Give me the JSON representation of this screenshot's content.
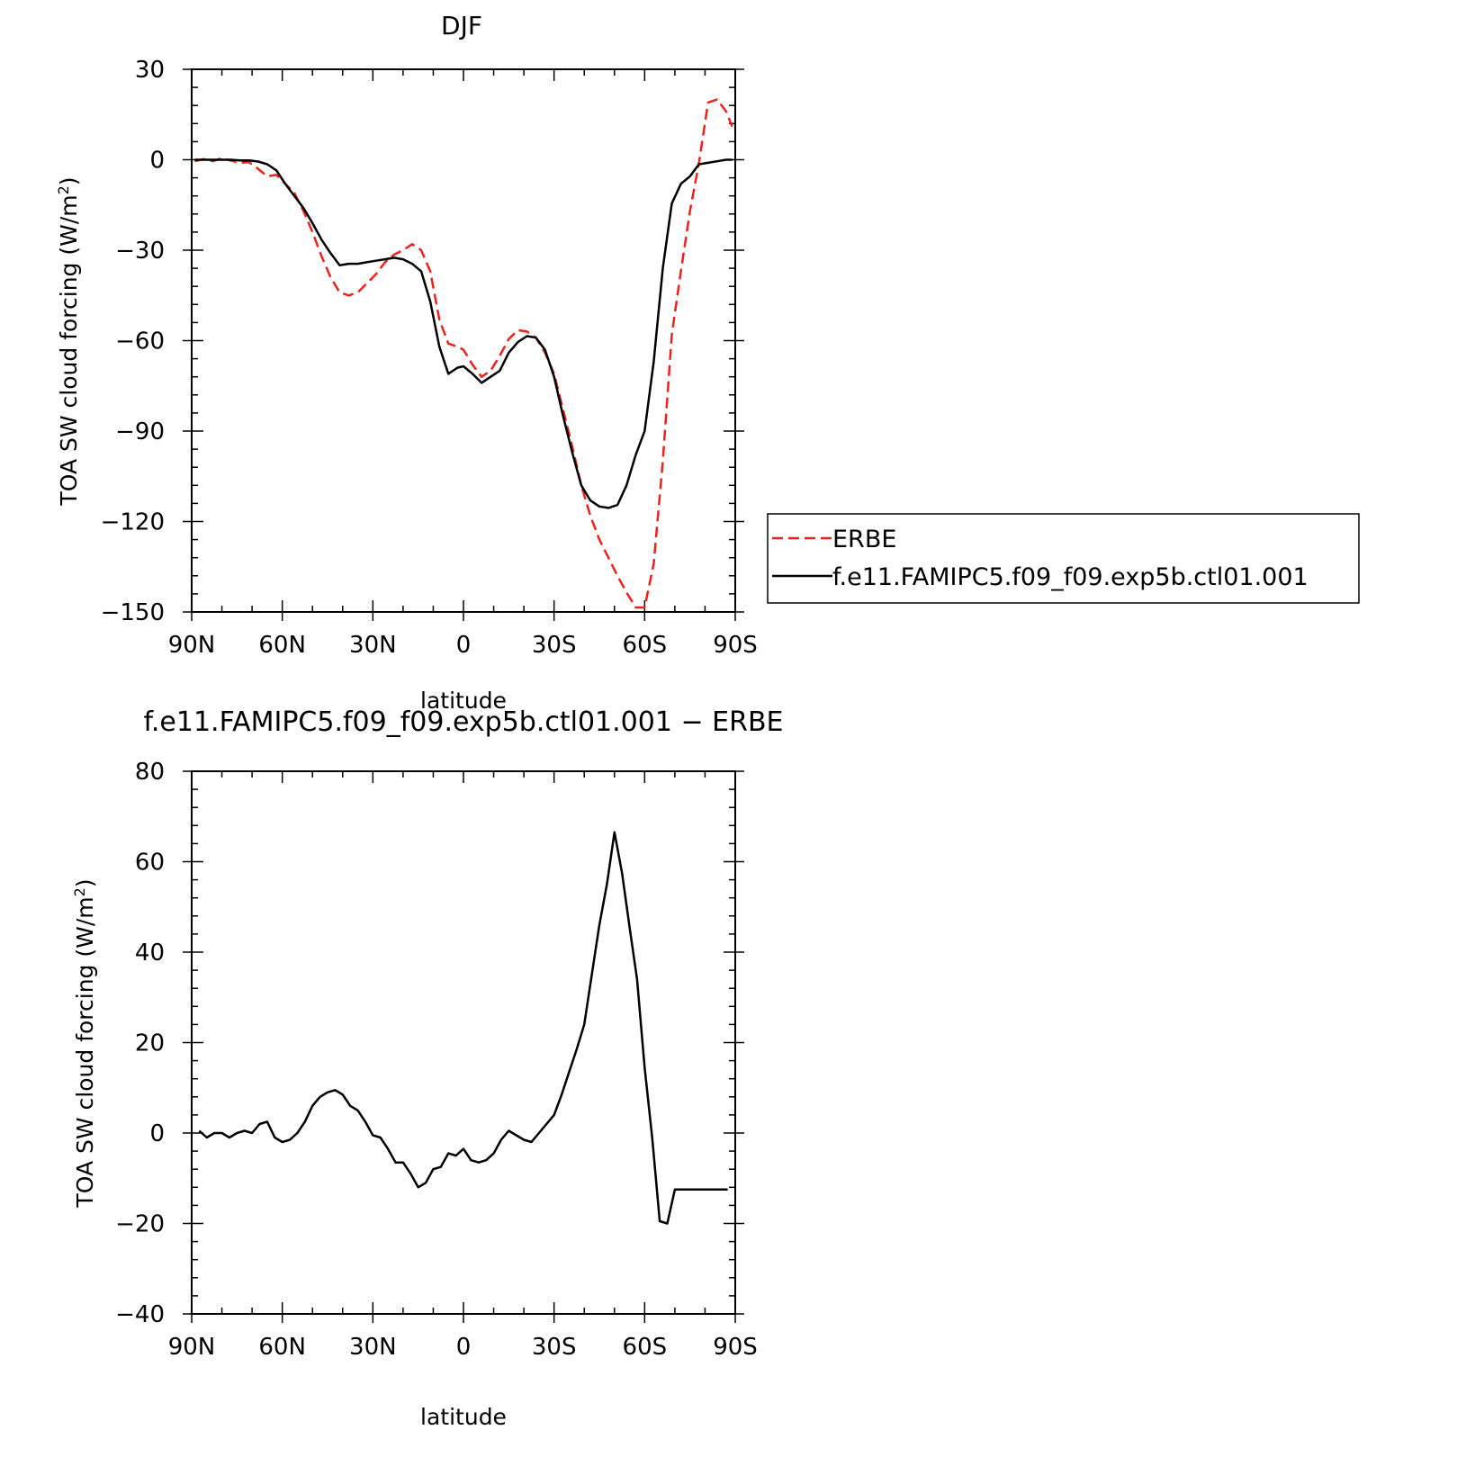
{
  "chart_data": [
    {
      "type": "line",
      "title": "DJF",
      "xlabel": "latitude",
      "ylabel": "TOA SW cloud forcing (W/m²)",
      "ylabel_main": "TOA SW cloud forcing (W/m",
      "ylabel_sup": "2",
      "ylabel_close": ")",
      "xlim": [
        90,
        -90
      ],
      "ylim": [
        -150,
        30
      ],
      "x_ticks": [
        90,
        60,
        30,
        0,
        -30,
        -60,
        -90
      ],
      "x_tick_labels": [
        "90N",
        "60N",
        "30N",
        "0",
        "30S",
        "60S",
        "90S"
      ],
      "y_ticks": [
        30,
        0,
        -30,
        -60,
        -90,
        -120,
        -150
      ],
      "y_tick_labels": [
        "30",
        "0",
        "−30",
        "−60",
        "−90",
        "−120",
        "−150"
      ],
      "legend_position": "right",
      "series": [
        {
          "name": "ERBE",
          "color": "#e8241c",
          "dash": "dashed",
          "x": [
            89,
            86,
            83,
            80,
            77,
            74,
            71,
            68,
            65,
            62,
            59,
            56,
            53,
            50,
            47,
            44,
            41,
            38,
            35,
            32,
            29,
            26,
            23,
            20,
            17,
            14,
            11,
            8,
            5,
            2,
            0,
            -3,
            -6,
            -9,
            -12,
            -15,
            -18,
            -21,
            -24,
            -27,
            -30,
            -33,
            -36,
            -39,
            -42,
            -45,
            -48,
            -51,
            -54,
            -57,
            -60,
            -63,
            -66,
            -69,
            -72,
            -75,
            -78,
            -81,
            -84,
            -87,
            -89
          ],
          "y": [
            -0.5,
            0.2,
            -0.5,
            0.5,
            -0.3,
            -1,
            -0.8,
            -3,
            -5.5,
            -5,
            -8,
            -11,
            -17,
            -24,
            -32,
            -39,
            -44,
            -45,
            -44,
            -41,
            -38,
            -34,
            -31.5,
            -30,
            -28,
            -30,
            -37,
            -53,
            -61,
            -62,
            -63,
            -68,
            -72,
            -70,
            -65,
            -59.5,
            -56.5,
            -57,
            -59,
            -64,
            -71,
            -83,
            -95,
            -108,
            -118,
            -126,
            -132,
            -138,
            -143.5,
            -148.5,
            -148.5,
            -134,
            -100,
            -58,
            -37,
            -17,
            -1,
            19,
            20,
            16,
            11
          ]
        },
        {
          "name": "f.e11.FAMIPC5.f09_f09.exp5b.ctl01.001",
          "color": "#000000",
          "dash": "solid",
          "x": [
            89,
            86,
            83,
            80,
            77,
            74,
            71,
            68,
            65,
            62,
            59,
            56,
            53,
            50,
            47,
            44,
            41,
            38,
            35,
            32,
            29,
            26,
            23,
            20,
            17,
            14,
            11,
            8,
            5,
            2,
            0,
            -3,
            -6,
            -9,
            -12,
            -15,
            -18,
            -21,
            -24,
            -27,
            -30,
            -33,
            -36,
            -39,
            -42,
            -45,
            -48,
            -51,
            -54,
            -57,
            -60,
            -63,
            -66,
            -69,
            -72,
            -75,
            -78,
            -81,
            -84,
            -87,
            -89
          ],
          "y": [
            0,
            0,
            0,
            0,
            0,
            -0.2,
            -0.2,
            -0.6,
            -1.5,
            -3.5,
            -8,
            -12,
            -16,
            -21,
            -26.5,
            -31,
            -35,
            -34.5,
            -34.5,
            -34,
            -33.5,
            -33,
            -32.5,
            -33,
            -34.5,
            -37,
            -47,
            -62,
            -71,
            -69,
            -68.5,
            -71,
            -74,
            -72,
            -70,
            -64,
            -60.5,
            -58.5,
            -59,
            -63,
            -72,
            -85,
            -97,
            -108,
            -113,
            -115,
            -115.5,
            -114.5,
            -108,
            -98,
            -90,
            -67,
            -36,
            -14.5,
            -8,
            -5.5,
            -1.5,
            -1,
            -0.5,
            0,
            0
          ]
        }
      ]
    },
    {
      "type": "line",
      "title": "f.e11.FAMIPC5.f09_f09.exp5b.ctl01.001  −  ERBE",
      "xlabel": "latitude",
      "ylabel": "TOA SW cloud forcing (W/m²)",
      "ylabel_main": "TOA SW cloud forcing (W/m",
      "ylabel_sup": "2",
      "ylabel_close": ")",
      "xlim": [
        90,
        -90
      ],
      "ylim": [
        -40,
        80
      ],
      "x_ticks": [
        90,
        60,
        30,
        0,
        -30,
        -60,
        -90
      ],
      "x_tick_labels": [
        "90N",
        "60N",
        "30N",
        "0",
        "30S",
        "60S",
        "90S"
      ],
      "y_ticks": [
        80,
        60,
        40,
        20,
        0,
        -20,
        -40
      ],
      "y_tick_labels": [
        "80",
        "60",
        "40",
        "20",
        "0",
        "−20",
        "−40"
      ],
      "series": [
        {
          "color": "#000000",
          "dash": "solid",
          "x": [
            87.5,
            85,
            82.5,
            80,
            77.5,
            75,
            72.5,
            70,
            67.5,
            65,
            62.5,
            60,
            57.5,
            55,
            52.5,
            50,
            47.5,
            45,
            42.5,
            40,
            37.5,
            35,
            32.5,
            30,
            27.5,
            25,
            22.5,
            20,
            17.5,
            15,
            12.5,
            10,
            7.5,
            5,
            2.5,
            0,
            -2.5,
            -5,
            -7.5,
            -10,
            -12.5,
            -15,
            -17.5,
            -20,
            -22.5,
            -25,
            -27.5,
            -30,
            -32.5,
            -35,
            -37.5,
            -40,
            -42.5,
            -45,
            -47.5,
            -50,
            -52.5,
            -55,
            -57.5,
            -60,
            -62.5,
            -65,
            -67.5,
            -70,
            -72.5,
            -75,
            -77.5,
            -80,
            -82.5,
            -85,
            -87.5
          ],
          "y": [
            0.5,
            -1,
            0,
            0,
            -1,
            0,
            0.5,
            0,
            2,
            2.5,
            -1,
            -2,
            -1.5,
            0,
            2.5,
            6,
            8,
            9,
            9.5,
            8.5,
            6,
            5,
            2.5,
            -0.5,
            -1,
            -3.5,
            -6.5,
            -6.5,
            -9,
            -12,
            -11,
            -8,
            -7.5,
            -4.5,
            -5,
            -3.5,
            -6,
            -6.5,
            -6,
            -4.5,
            -1.5,
            0.5,
            -0.5,
            -1.5,
            -2,
            0,
            2,
            4,
            8.5,
            13.5,
            18.5,
            24,
            35,
            46,
            55,
            66.5,
            57.5,
            45.5,
            34,
            14.5,
            -1,
            -19.5,
            -20,
            -12.5,
            -12.5,
            -12.5,
            -12.5,
            -12.5,
            -12.5,
            -12.5,
            -12.5
          ]
        }
      ]
    }
  ]
}
